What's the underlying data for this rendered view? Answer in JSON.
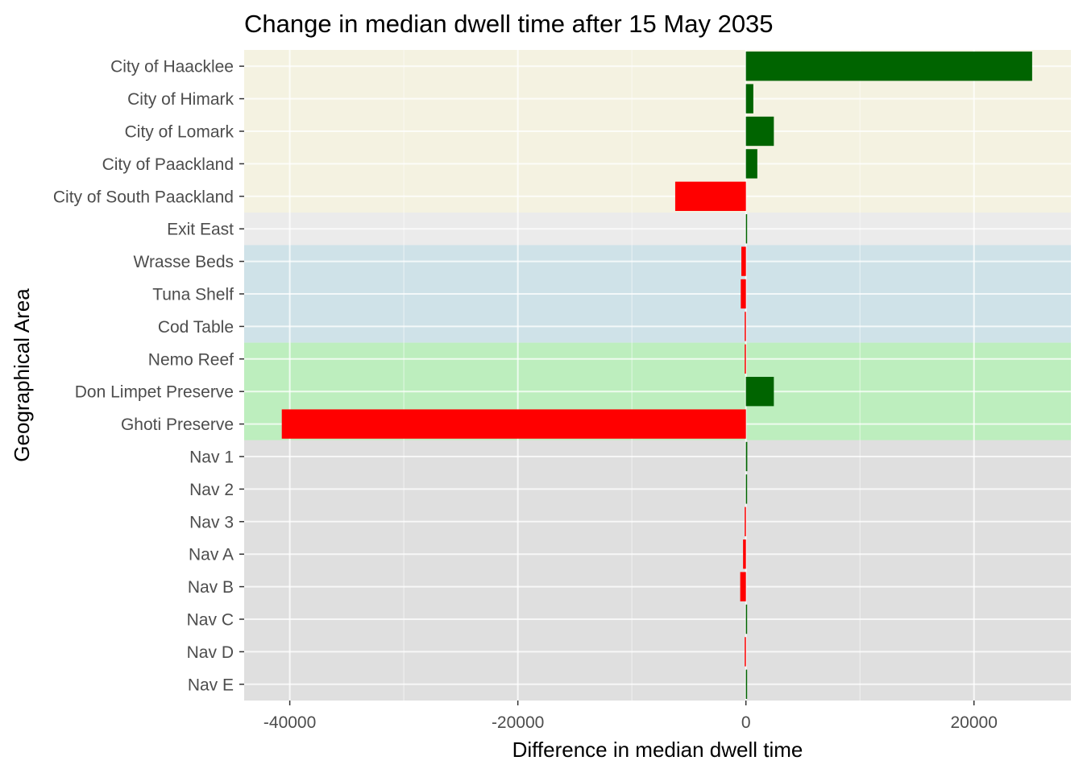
{
  "chart_data": {
    "type": "bar",
    "orientation": "horizontal",
    "title": "Change in median dwell time after 15 May 2035",
    "xlabel": "Difference in median dwell time",
    "ylabel": "Geographical Area",
    "xlim": [
      -44000,
      28500
    ],
    "x_ticks": [
      -40000,
      -20000,
      0,
      20000
    ],
    "x_tick_labels": [
      "-40000",
      "-20000",
      "0",
      "20000"
    ],
    "grid": true,
    "legend": "none",
    "positive_color": "#006400",
    "negative_color": "#FF0000",
    "categories": [
      "City of Haacklee",
      "City of Himark",
      "City of Lomark",
      "City of Paackland",
      "City of South Paackland",
      "Exit East",
      "Wrasse Beds",
      "Tuna Shelf",
      "Cod Table",
      "Nemo Reef",
      "Don Limpet Preserve",
      "Ghoti Preserve",
      "Nav 1",
      "Nav 2",
      "Nav 3",
      "Nav A",
      "Nav B",
      "Nav C",
      "Nav D",
      "Nav E"
    ],
    "values": [
      25100,
      650,
      2450,
      1000,
      -6200,
      50,
      -400,
      -450,
      -50,
      -100,
      2450,
      -40700,
      120,
      30,
      -100,
      -250,
      -500,
      50,
      -50,
      30
    ],
    "bands": [
      {
        "from": 0,
        "to": 4,
        "color": "#F4F2E1"
      },
      {
        "from": 5,
        "to": 5,
        "color": "#EBEBEB"
      },
      {
        "from": 6,
        "to": 8,
        "color": "#CFE2E8"
      },
      {
        "from": 9,
        "to": 11,
        "color": "#BDEEBE"
      },
      {
        "from": 12,
        "to": 19,
        "color": "#DFDFDF"
      }
    ]
  }
}
